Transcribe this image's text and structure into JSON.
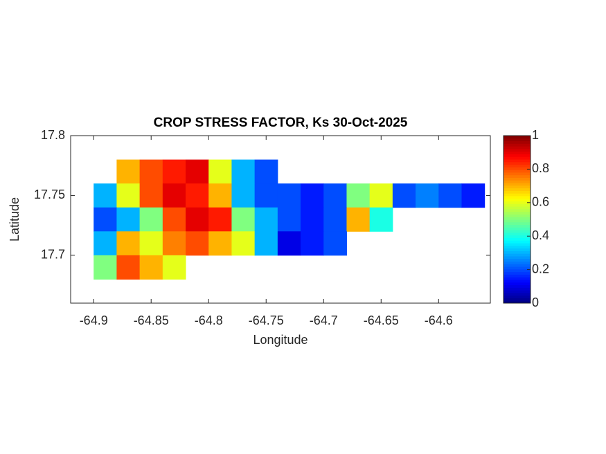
{
  "chart_data": {
    "type": "heatmap",
    "title": "CROP STRESS FACTOR, Ks  30-Oct-2025",
    "xlabel": "Longitude",
    "ylabel": "Latitude",
    "xlim": [
      -64.92,
      -64.555
    ],
    "ylim": [
      17.66,
      17.8
    ],
    "xticks": [
      -64.9,
      -64.85,
      -64.8,
      -64.75,
      -64.7,
      -64.65,
      -64.6
    ],
    "yticks": [
      17.7,
      17.75,
      17.8
    ],
    "colormap": "jet",
    "clim": [
      0,
      1
    ],
    "cticks": [
      0,
      0.2,
      0.4,
      0.6,
      0.8,
      1
    ],
    "x": [
      -64.89,
      -64.87,
      -64.85,
      -64.83,
      -64.81,
      -64.79,
      -64.77,
      -64.75,
      -64.73,
      -64.71,
      -64.69,
      -64.67,
      -64.65,
      -64.63,
      -64.61,
      -64.59,
      -64.57
    ],
    "y": [
      17.77,
      17.75,
      17.73,
      17.71,
      17.69
    ],
    "z": [
      [
        null,
        0.7,
        0.8,
        0.85,
        0.9,
        0.6,
        0.3,
        0.2,
        null,
        null,
        null,
        null,
        null,
        null,
        null,
        null,
        null
      ],
      [
        0.3,
        0.6,
        0.8,
        0.9,
        0.85,
        0.7,
        0.3,
        0.2,
        0.2,
        0.15,
        0.2,
        0.5,
        0.6,
        0.2,
        0.25,
        0.2,
        0.15
      ],
      [
        0.2,
        0.3,
        0.5,
        0.8,
        0.9,
        0.85,
        0.5,
        0.3,
        0.2,
        0.15,
        0.2,
        0.7,
        0.4,
        null,
        null,
        null,
        null
      ],
      [
        0.3,
        0.7,
        0.6,
        0.75,
        0.8,
        0.7,
        0.6,
        0.3,
        0.1,
        0.15,
        0.2,
        null,
        null,
        null,
        null,
        null,
        null
      ],
      [
        0.5,
        0.8,
        0.7,
        0.6,
        null,
        null,
        null,
        null,
        null,
        null,
        null,
        null,
        null,
        null,
        null,
        null,
        null
      ]
    ]
  }
}
